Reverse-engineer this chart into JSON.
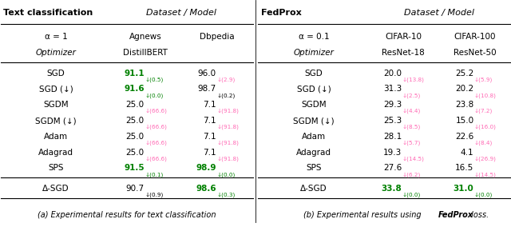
{
  "left_table": {
    "title": "Text classification",
    "header1": "Dataset / Model",
    "alpha_row": [
      "α = 1",
      "Agnews",
      "Dbpedia"
    ],
    "optimizer_row": [
      "Optimizer",
      "DistillBERT",
      ""
    ],
    "rows": [
      [
        "SGD",
        "91.1",
        "↓(0.5)",
        "green",
        "96.0",
        "↓(2.9)",
        "pink"
      ],
      [
        "SGD (↓)",
        "91.6",
        "↓(0.0)",
        "green",
        "98.7",
        "↓(0.2)",
        "black"
      ],
      [
        "SGDM",
        "25.0",
        "↓(66.6)",
        "pink",
        "7.1",
        "↓(91.8)",
        "pink"
      ],
      [
        "SGDM (↓)",
        "25.0",
        "↓(66.6)",
        "pink",
        "7.1",
        "↓(91.8)",
        "pink"
      ],
      [
        "Adam",
        "25.0",
        "↓(66.6)",
        "pink",
        "7.1",
        "↓(91.8)",
        "pink"
      ],
      [
        "Adagrad",
        "25.0",
        "↓(66.6)",
        "pink",
        "7.1",
        "↓(91.8)",
        "pink"
      ],
      [
        "SPS",
        "91.5",
        "↓(0.1)",
        "green",
        "98.9",
        "↓(0.0)",
        "green"
      ]
    ],
    "delta_row": [
      "Δ-SGD",
      "90.7",
      "↓(0.9)",
      "black",
      "98.6",
      "↓(0.3)",
      "green"
    ],
    "caption": "(a) Experimental results for text classification"
  },
  "right_table": {
    "title": "FedProx",
    "header1": "Dataset / Model",
    "alpha_row": [
      "α = 0.1",
      "CIFAR-10",
      "CIFAR-100"
    ],
    "optimizer_row": [
      "Optimizer",
      "ResNet-18",
      "ResNet-50"
    ],
    "rows": [
      [
        "SGD",
        "20.0",
        "↓(13.8)",
        "pink",
        "25.2",
        "↓(5.9)",
        "pink"
      ],
      [
        "SGD (↓)",
        "31.3",
        "↓(2.5)",
        "pink",
        "20.2",
        "↓(10.8)",
        "pink"
      ],
      [
        "SGDM",
        "29.3",
        "↓(4.4)",
        "pink",
        "23.8",
        "↓(7.2)",
        "pink"
      ],
      [
        "SGDM (↓)",
        "25.3",
        "↓(8.5)",
        "pink",
        "15.0",
        "↓(16.0)",
        "pink"
      ],
      [
        "Adam",
        "28.1",
        "↓(5.7)",
        "pink",
        "22.6",
        "↓(8.4)",
        "pink"
      ],
      [
        "Adagrad",
        "19.3",
        "↓(14.5)",
        "pink",
        "4.1",
        "↓(26.9)",
        "pink"
      ],
      [
        "SPS",
        "27.6",
        "↓(6.2)",
        "pink",
        "16.5",
        "↓(14.5)",
        "pink"
      ]
    ],
    "delta_row": [
      "Δ-SGD",
      "33.8",
      "↓(0.0)",
      "green",
      "31.0",
      "↓(0.0)",
      "green"
    ],
    "caption_a": "(b) Experimental results using ",
    "caption_b": "FedProx",
    "caption_c": " loss."
  },
  "color_map": {
    "green": "#008000",
    "pink": "#FF69B4",
    "black": "#000000"
  }
}
